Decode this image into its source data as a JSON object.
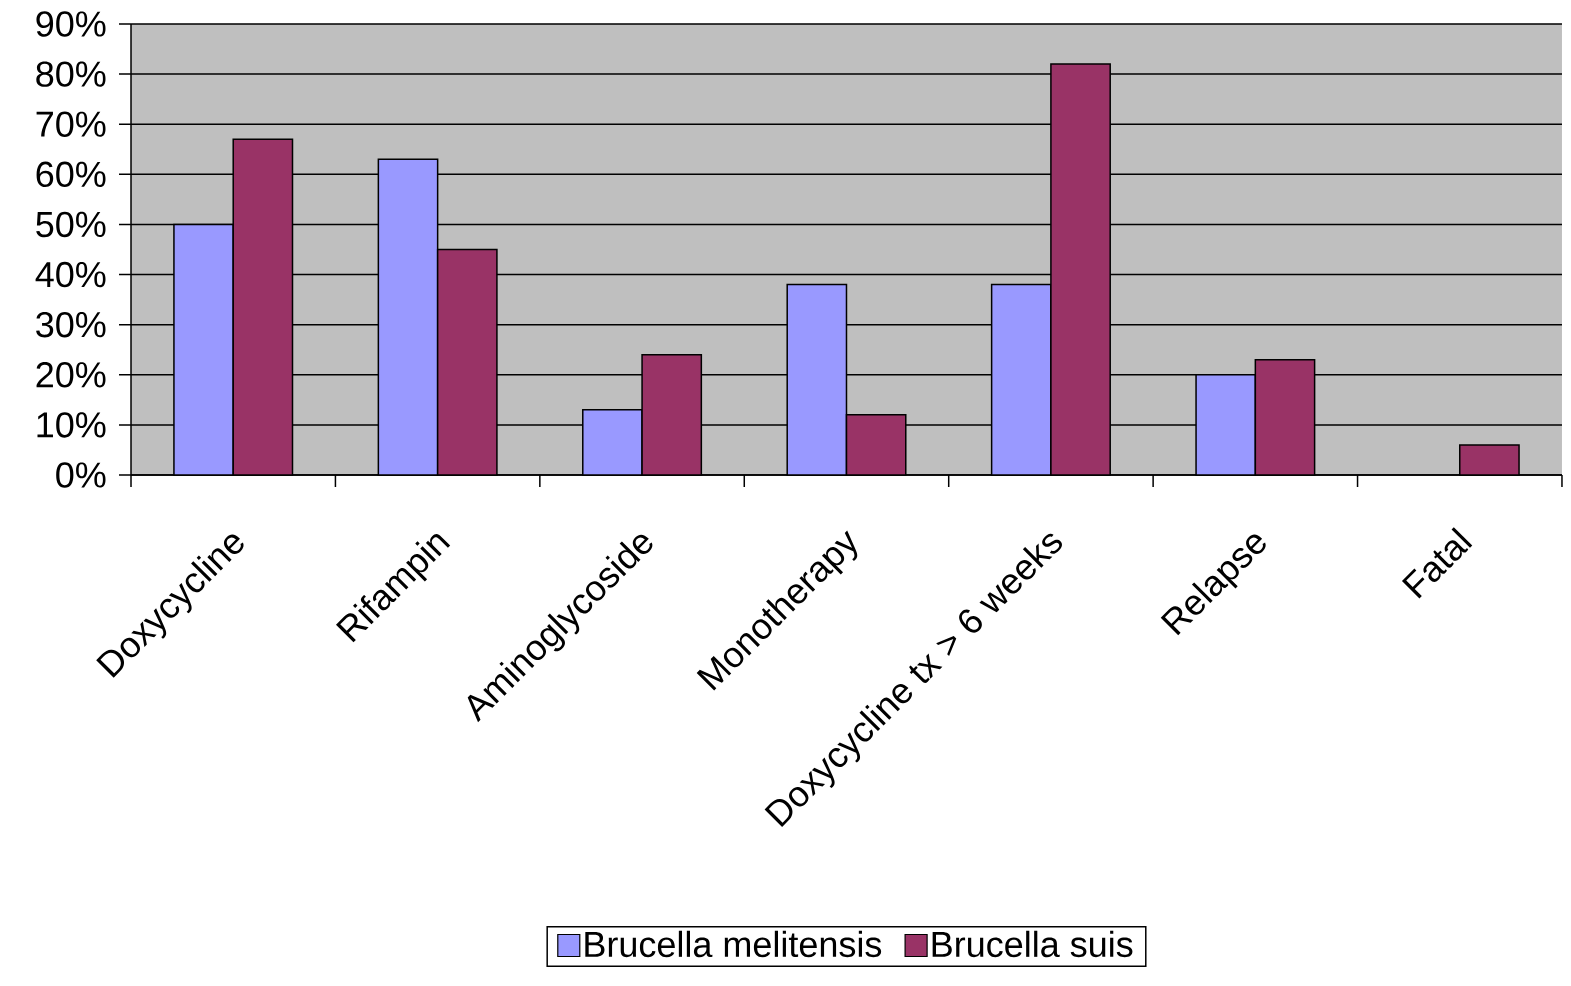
{
  "chart_data": {
    "type": "bar",
    "categories": [
      "Doxycycline",
      "Rifampin",
      "Aminoglycoside",
      "Monotherapy",
      "Doxycycline tx > 6 weeks",
      "Relapse",
      "Fatal"
    ],
    "series": [
      {
        "name": "Brucella melitensis",
        "color": "#9999ff",
        "values": [
          50,
          63,
          13,
          38,
          38,
          20,
          null
        ]
      },
      {
        "name": "Brucella suis",
        "color": "#993366",
        "values": [
          67,
          45,
          24,
          12,
          82,
          23,
          6
        ]
      }
    ],
    "ylim": [
      0,
      90
    ],
    "yticks": [
      {
        "value": 0,
        "label": "0%"
      },
      {
        "value": 10,
        "label": "10%"
      },
      {
        "value": 20,
        "label": "20%"
      },
      {
        "value": 30,
        "label": "30%"
      },
      {
        "value": 40,
        "label": "40%"
      },
      {
        "value": 50,
        "label": "50%"
      },
      {
        "value": 60,
        "label": "60%"
      },
      {
        "value": 70,
        "label": "70%"
      },
      {
        "value": 80,
        "label": "80%"
      },
      {
        "value": 90,
        "label": "90%"
      }
    ],
    "grid": "y",
    "legend": "bottom"
  }
}
